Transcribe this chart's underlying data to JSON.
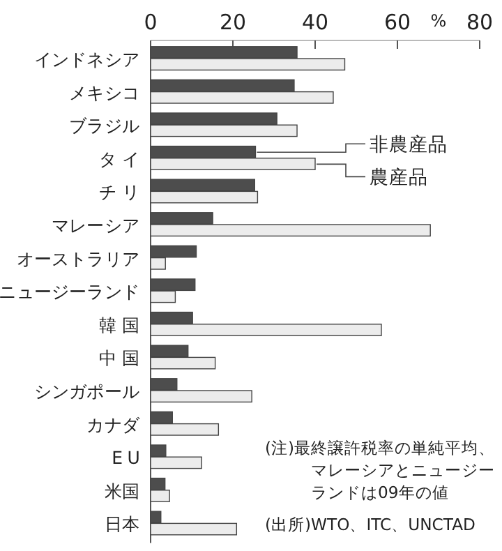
{
  "chart_data": {
    "type": "bar",
    "orientation": "horizontal",
    "xlabel": "%",
    "categories": [
      "インドネシア",
      "メキシコ",
      "ブラジル",
      "タ イ",
      "チ リ",
      "マレーシア",
      "オーストラリア",
      "ニュージーランド",
      "韓 国",
      "中 国",
      "シンガポール",
      "カナダ",
      "E U",
      "米国",
      "日本"
    ],
    "series": [
      {
        "name": "非農産品",
        "color": "#4d4d4d",
        "values": [
          35.6,
          34.9,
          30.7,
          25.5,
          25.3,
          15.1,
          11.1,
          10.8,
          10.2,
          9.1,
          6.4,
          5.3,
          3.7,
          3.5,
          2.5
        ]
      },
      {
        "name": "農産品",
        "color": "#ececec",
        "values": [
          47.2,
          44.4,
          35.6,
          40.0,
          26.0,
          68.0,
          3.6,
          6.0,
          56.1,
          15.7,
          24.6,
          16.5,
          12.4,
          4.6,
          20.9
        ]
      }
    ],
    "xlim": [
      0,
      80
    ],
    "xticks": [
      0,
      20,
      40,
      60,
      80
    ],
    "grid": false,
    "legend": "right",
    "annotations": [
      "(注)最終譲許税率の単純平均、マレーシアとニュージーランドは09年の値",
      "(出所)WTO、ITC、UNCTAD"
    ]
  }
}
